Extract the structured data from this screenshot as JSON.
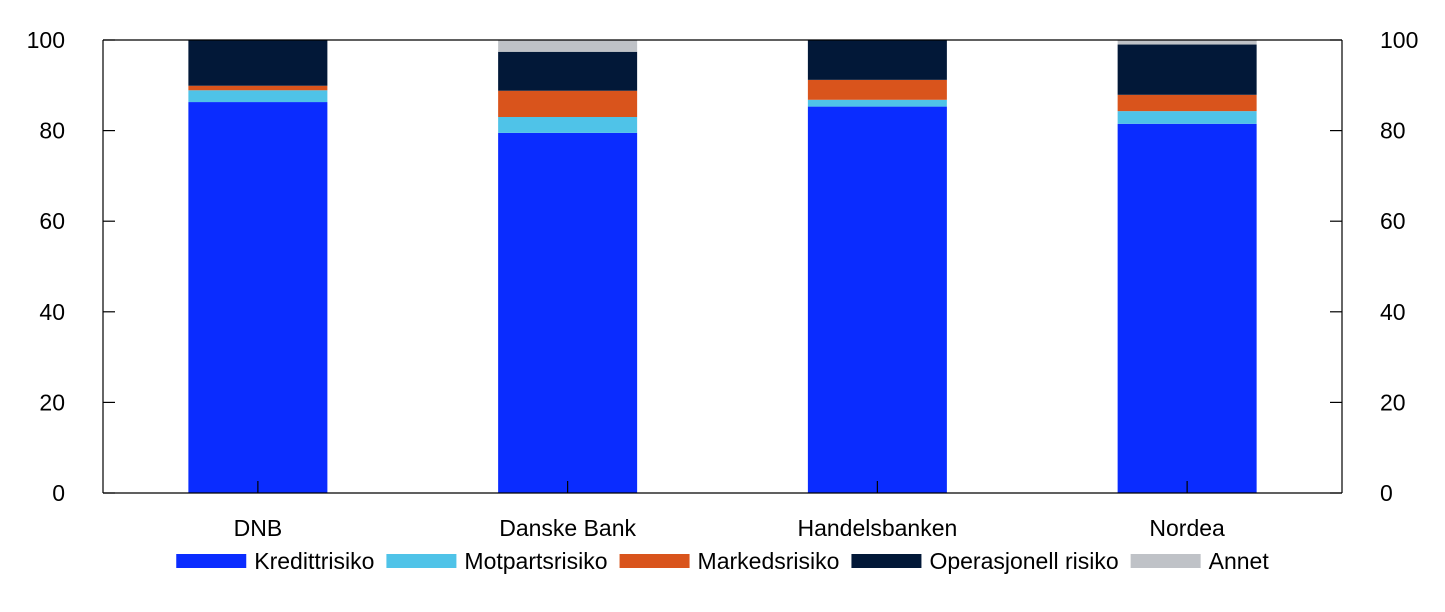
{
  "chart_data": {
    "type": "bar",
    "stacked": true,
    "categories": [
      "DNB",
      "Danske Bank",
      "Handelsbanken",
      "Nordea"
    ],
    "series": [
      {
        "name": "Kredittrisiko",
        "color": "#0a2cff",
        "values": [
          86.3,
          79.5,
          85.3,
          81.5
        ]
      },
      {
        "name": "Motpartsrisiko",
        "color": "#4fc3e8",
        "values": [
          2.6,
          3.5,
          1.5,
          2.8
        ]
      },
      {
        "name": "Markedsrisiko",
        "color": "#d9541c",
        "values": [
          1.0,
          5.8,
          4.4,
          3.6
        ]
      },
      {
        "name": "Operasjonell risiko",
        "color": "#021838",
        "values": [
          10.1,
          8.6,
          8.8,
          11.1
        ]
      },
      {
        "name": "Annet",
        "color": "#bfc2c7",
        "values": [
          0.0,
          2.6,
          0.0,
          1.0
        ]
      }
    ],
    "ylim": [
      0,
      100
    ],
    "yticks": [
      0,
      20,
      40,
      60,
      80,
      100
    ],
    "y_axis_left_labels": [
      "0",
      "20",
      "40",
      "60",
      "80",
      "100"
    ],
    "y_axis_right_labels": [
      "0",
      "20",
      "40",
      "60",
      "80",
      "100"
    ],
    "xlabel": "",
    "ylabel": "",
    "grid": false,
    "legend_position": "bottom"
  }
}
